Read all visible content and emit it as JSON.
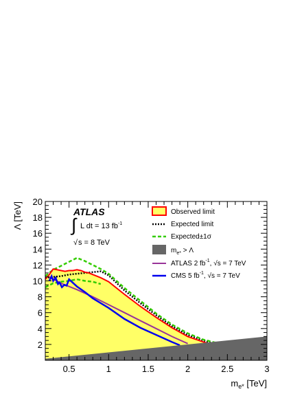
{
  "chart_data": {
    "type": "area",
    "xlabel_main": "m",
    "xlabel_sub": "e*",
    "xlabel_unit": " [TeV]",
    "ylabel": "Λ [TeV]",
    "xlim": [
      0.2,
      3.0
    ],
    "ylim": [
      0,
      20
    ],
    "x_ticks": [
      0.5,
      1,
      1.5,
      2,
      2.5,
      3
    ],
    "x_tick_labels": [
      "0.5",
      "1",
      "1.5",
      "2",
      "2.5",
      "3"
    ],
    "y_ticks": [
      2,
      4,
      6,
      8,
      10,
      12,
      14,
      16,
      18,
      20
    ],
    "y_tick_labels": [
      "2",
      "4",
      "6",
      "8",
      "10",
      "12",
      "14",
      "16",
      "18",
      "20"
    ],
    "grid": false,
    "legend_position": "top-right",
    "annotations": {
      "experiment": "ATLAS",
      "lumi_prefix": "L dt = 13 fb",
      "lumi_sup": "-1",
      "sqrt_s": "s = 8 TeV"
    },
    "legend": {
      "observed": "Observed limit",
      "expected": "Expected limit",
      "band": "Expected±1σ",
      "excluded_main": "m",
      "excluded_sub": "e*",
      "excluded_rest": " > Λ",
      "atlas_main": "ATLAS 2 fb",
      "atlas_sup": "-1",
      "atlas_rest": ", s = 7 TeV",
      "cms_main": "CMS 5 fb",
      "cms_sup": "-1",
      "cms_rest": ", s = 7 TeV"
    },
    "colors": {
      "observed_fill": "#ffff66",
      "observed_line": "#ff0000",
      "expected": "#000000",
      "band": "#33cc00",
      "excluded": "#666666",
      "atlas": "#993399",
      "cms": "#0000ee"
    },
    "series": [
      {
        "name": "Observed limit",
        "x": [
          0.2,
          0.25,
          0.3,
          0.35,
          0.4,
          0.45,
          0.5,
          0.55,
          0.6,
          0.65,
          0.7,
          0.75,
          0.8,
          0.85,
          0.9,
          1.0,
          1.2,
          1.4,
          1.6,
          1.8,
          2.0,
          2.2,
          2.3
        ],
        "y": [
          10.2,
          10.8,
          11.5,
          11.4,
          11.3,
          11.2,
          11.3,
          11.3,
          11.4,
          11.3,
          11.1,
          11.0,
          10.8,
          10.6,
          10.4,
          9.9,
          8.3,
          6.8,
          5.4,
          4.1,
          3.0,
          2.3,
          2.0
        ]
      },
      {
        "name": "Expected limit",
        "x": [
          0.2,
          0.3,
          0.4,
          0.5,
          0.6,
          0.7,
          0.8,
          0.9,
          1.0,
          1.2,
          1.4,
          1.6,
          1.8,
          2.0,
          2.2,
          2.3
        ],
        "y": [
          10.4,
          10.5,
          10.6,
          10.8,
          10.9,
          11.0,
          11.1,
          11.2,
          10.7,
          8.8,
          7.2,
          5.7,
          4.3,
          3.2,
          2.5,
          2.2
        ]
      },
      {
        "name": "Expected±1σ (upper)",
        "x": [
          0.2,
          0.3,
          0.4,
          0.5,
          0.6,
          0.7,
          0.8,
          0.9,
          1.0,
          1.2,
          1.4,
          1.6,
          1.8,
          2.0,
          2.2,
          2.4
        ],
        "y": [
          10.6,
          11.4,
          11.9,
          12.4,
          12.9,
          12.5,
          12.0,
          11.5,
          10.9,
          9.1,
          7.5,
          5.9,
          4.5,
          3.4,
          2.6,
          2.1
        ]
      },
      {
        "name": "Expected±1σ (lower)",
        "x": [
          0.2,
          0.3,
          0.4,
          0.5,
          0.6,
          0.7,
          0.8,
          0.9
        ],
        "y": [
          9.2,
          9.7,
          9.9,
          10.0,
          10.2,
          10.0,
          9.9,
          9.6
        ]
      },
      {
        "name": "ATLAS 2 fb-1, √s = 7 TeV",
        "x": [
          0.25,
          0.4,
          0.6,
          0.8,
          1.0,
          1.2,
          1.4,
          1.6,
          1.8,
          2.0
        ],
        "y": [
          10.5,
          9.7,
          8.9,
          8.0,
          7.0,
          6.0,
          5.0,
          4.0,
          3.0,
          2.1
        ]
      },
      {
        "name": "CMS 5 fb-1, √s = 7 TeV",
        "x": [
          0.25,
          0.28,
          0.3,
          0.33,
          0.36,
          0.38,
          0.41,
          0.44,
          0.47,
          0.5,
          0.6,
          0.7,
          0.8,
          1.0,
          1.2,
          1.4,
          1.6,
          1.8,
          1.9
        ],
        "y": [
          10.0,
          10.6,
          10.0,
          10.4,
          9.6,
          9.8,
          9.2,
          9.5,
          9.4,
          10.2,
          9.3,
          8.6,
          7.8,
          6.6,
          5.2,
          4.1,
          3.2,
          2.3,
          1.9
        ]
      },
      {
        "name": "m_e* > Λ",
        "x": [
          0.2,
          3.0
        ],
        "y": [
          0.2,
          3.0
        ]
      }
    ]
  }
}
